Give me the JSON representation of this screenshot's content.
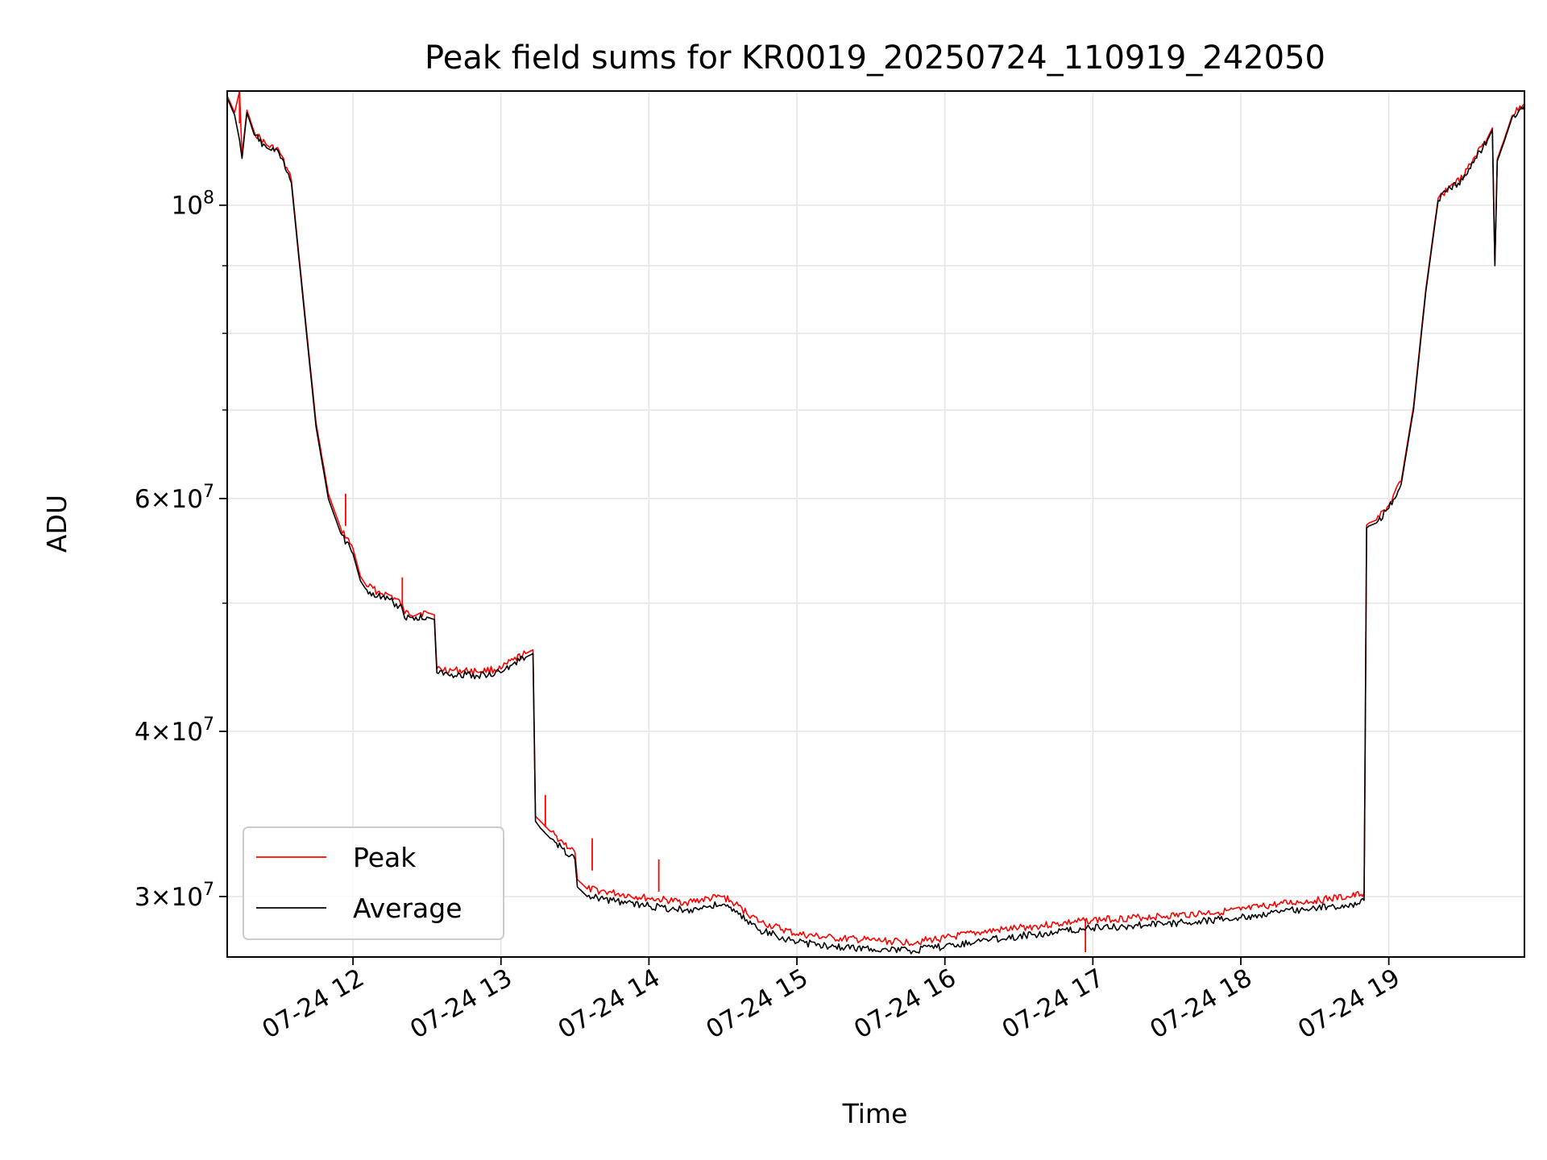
{
  "chart_data": {
    "type": "line",
    "title": "Peak field sums for KR0019_20250724_110919_242050",
    "xlabel": "Time",
    "ylabel": "ADU",
    "yscale": "log",
    "ylim": [
      27000000,
      122000000
    ],
    "xlim": [
      "2025-07-24 11:09",
      "2025-07-24 19:55"
    ],
    "grid": true,
    "legend_position": "lower-left",
    "x_ticks": [
      {
        "t": "2025-07-24 12:00",
        "label": "07-24 12"
      },
      {
        "t": "2025-07-24 13:00",
        "label": "07-24 13"
      },
      {
        "t": "2025-07-24 14:00",
        "label": "07-24 14"
      },
      {
        "t": "2025-07-24 15:00",
        "label": "07-24 15"
      },
      {
        "t": "2025-07-24 16:00",
        "label": "07-24 16"
      },
      {
        "t": "2025-07-24 17:00",
        "label": "07-24 17"
      },
      {
        "t": "2025-07-24 18:00",
        "label": "07-24 18"
      },
      {
        "t": "2025-07-24 19:00",
        "label": "07-24 19"
      }
    ],
    "y_major_ticks": [
      {
        "v": 30000000,
        "base": "3",
        "exp": "7"
      },
      {
        "v": 40000000,
        "base": "4",
        "exp": "7"
      },
      {
        "v": 60000000,
        "base": "6",
        "exp": "7"
      },
      {
        "v": 100000000,
        "base": "",
        "exp": "8"
      }
    ],
    "y_minor_ticks": [
      50000000,
      70000000,
      80000000,
      90000000
    ],
    "series": [
      {
        "name": "Average",
        "color": "#000000",
        "t": [
          "2025-07-24 11:09",
          "2025-07-24 11:12",
          "2025-07-24 11:14",
          "2025-07-24 11:15",
          "2025-07-24 11:17",
          "2025-07-24 11:20",
          "2025-07-24 11:25",
          "2025-07-24 11:30",
          "2025-07-24 11:35",
          "2025-07-24 11:40",
          "2025-07-24 11:45",
          "2025-07-24 11:50",
          "2025-07-24 11:55",
          "2025-07-24 12:00",
          "2025-07-24 12:03",
          "2025-07-24 12:05",
          "2025-07-24 12:10",
          "2025-07-24 12:15",
          "2025-07-24 12:20",
          "2025-07-24 12:21",
          "2025-07-24 12:30",
          "2025-07-24 12:33",
          "2025-07-24 12:34",
          "2025-07-24 12:40",
          "2025-07-24 12:50",
          "2025-07-24 13:00",
          "2025-07-24 13:05",
          "2025-07-24 13:10",
          "2025-07-24 13:13",
          "2025-07-24 13:14",
          "2025-07-24 13:16",
          "2025-07-24 13:20",
          "2025-07-24 13:25",
          "2025-07-24 13:30",
          "2025-07-24 13:31",
          "2025-07-24 13:35",
          "2025-07-24 13:45",
          "2025-07-24 14:00",
          "2025-07-24 14:15",
          "2025-07-24 14:30",
          "2025-07-24 14:35",
          "2025-07-24 14:45",
          "2025-07-24 15:00",
          "2025-07-24 15:15",
          "2025-07-24 15:30",
          "2025-07-24 15:45",
          "2025-07-24 16:00",
          "2025-07-24 16:15",
          "2025-07-24 16:30",
          "2025-07-24 16:45",
          "2025-07-24 17:00",
          "2025-07-24 17:30",
          "2025-07-24 18:00",
          "2025-07-24 18:15",
          "2025-07-24 18:30",
          "2025-07-24 18:45",
          "2025-07-24 18:50",
          "2025-07-24 18:51",
          "2025-07-24 18:52",
          "2025-07-24 18:55",
          "2025-07-24 19:00",
          "2025-07-24 19:05",
          "2025-07-24 19:10",
          "2025-07-24 19:15",
          "2025-07-24 19:20",
          "2025-07-24 19:25",
          "2025-07-24 19:30",
          "2025-07-24 19:35",
          "2025-07-24 19:40",
          "2025-07-24 19:42",
          "2025-07-24 19:43",
          "2025-07-24 19:44",
          "2025-07-24 19:47",
          "2025-07-24 19:50",
          "2025-07-24 19:55"
        ],
        "y": [
          120500000,
          117000000,
          112000000,
          108500000,
          117500000,
          113000000,
          110500000,
          109500000,
          104000000,
          84000000,
          68000000,
          60000000,
          56500000,
          54500000,
          52000000,
          51300000,
          50600000,
          50300000,
          49500000,
          48700000,
          48800000,
          48600000,
          44300000,
          44200000,
          44100000,
          44300000,
          45000000,
          45500000,
          45800000,
          34200000,
          33800000,
          33200000,
          32600000,
          32000000,
          30500000,
          30000000,
          29800000,
          29500000,
          29300000,
          29600000,
          29200000,
          28300000,
          27700000,
          27500000,
          27400000,
          27300000,
          27500000,
          27800000,
          28000000,
          28200000,
          28400000,
          28600000,
          28900000,
          29200000,
          29400000,
          29600000,
          29800000,
          57000000,
          57200000,
          57500000,
          59000000,
          61500000,
          70000000,
          86000000,
          100800000,
          103000000,
          104500000,
          108500000,
          112000000,
          114000000,
          90000000,
          108000000,
          112000000,
          116500000,
          119000000
        ]
      },
      {
        "name": "Peak",
        "color": "#ff0000",
        "t": [
          "2025-07-24 11:09",
          "2025-07-24 11:12",
          "2025-07-24 11:14",
          "2025-07-24 11:15",
          "2025-07-24 11:17",
          "2025-07-24 11:20",
          "2025-07-24 11:25",
          "2025-07-24 11:30",
          "2025-07-24 11:35",
          "2025-07-24 11:40",
          "2025-07-24 11:45",
          "2025-07-24 11:50",
          "2025-07-24 11:55",
          "2025-07-24 12:00",
          "2025-07-24 12:03",
          "2025-07-24 12:05",
          "2025-07-24 12:10",
          "2025-07-24 12:15",
          "2025-07-24 12:20",
          "2025-07-24 12:21",
          "2025-07-24 12:30",
          "2025-07-24 12:33",
          "2025-07-24 12:34",
          "2025-07-24 12:40",
          "2025-07-24 12:50",
          "2025-07-24 13:00",
          "2025-07-24 13:05",
          "2025-07-24 13:10",
          "2025-07-24 13:13",
          "2025-07-24 13:14",
          "2025-07-24 13:16",
          "2025-07-24 13:20",
          "2025-07-24 13:25",
          "2025-07-24 13:30",
          "2025-07-24 13:31",
          "2025-07-24 13:35",
          "2025-07-24 13:45",
          "2025-07-24 14:00",
          "2025-07-24 14:15",
          "2025-07-24 14:30",
          "2025-07-24 14:35",
          "2025-07-24 14:45",
          "2025-07-24 15:00",
          "2025-07-24 15:15",
          "2025-07-24 15:30",
          "2025-07-24 15:45",
          "2025-07-24 16:00",
          "2025-07-24 16:15",
          "2025-07-24 16:30",
          "2025-07-24 16:45",
          "2025-07-24 17:00",
          "2025-07-24 17:30",
          "2025-07-24 18:00",
          "2025-07-24 18:15",
          "2025-07-24 18:30",
          "2025-07-24 18:45",
          "2025-07-24 18:50",
          "2025-07-24 18:51",
          "2025-07-24 18:52",
          "2025-07-24 18:55",
          "2025-07-24 19:00",
          "2025-07-24 19:05",
          "2025-07-24 19:10",
          "2025-07-24 19:15",
          "2025-07-24 19:20",
          "2025-07-24 19:25",
          "2025-07-24 19:30",
          "2025-07-24 19:35",
          "2025-07-24 19:40",
          "2025-07-24 19:42",
          "2025-07-24 19:43",
          "2025-07-24 19:44",
          "2025-07-24 19:47",
          "2025-07-24 19:50",
          "2025-07-24 19:55"
        ],
        "y": [
          121000000,
          117500000,
          122000000,
          109000000,
          118000000,
          113500000,
          111000000,
          110000000,
          104500000,
          84500000,
          68500000,
          60500000,
          57000000,
          55000000,
          52400000,
          51700000,
          51000000,
          50700000,
          49900000,
          49100000,
          49200000,
          49000000,
          44600000,
          44500000,
          44400000,
          44600000,
          45300000,
          45800000,
          46100000,
          34500000,
          34200000,
          33600000,
          33000000,
          32400000,
          30900000,
          30400000,
          30200000,
          29900000,
          29700000,
          30000000,
          29600000,
          28700000,
          28100000,
          27900000,
          27800000,
          27700000,
          27900000,
          28200000,
          28400000,
          28600000,
          28800000,
          29000000,
          29300000,
          29600000,
          29800000,
          30000000,
          30200000,
          57300000,
          57500000,
          57800000,
          59300000,
          61800000,
          70400000,
          86400000,
          101200000,
          103400000,
          104900000,
          108900000,
          112400000,
          114400000,
          90400000,
          108400000,
          112400000,
          116900000,
          119400000
        ]
      }
    ],
    "peak_spikes": [
      {
        "t": "2025-07-24 11:14",
        "y": 122000000
      },
      {
        "t": "2025-07-24 11:57",
        "y": 60500000
      },
      {
        "t": "2025-07-24 12:20",
        "y": 52300000
      },
      {
        "t": "2025-07-24 13:18",
        "y": 35800000
      },
      {
        "t": "2025-07-24 13:37",
        "y": 33200000
      },
      {
        "t": "2025-07-24 14:04",
        "y": 32000000
      },
      {
        "t": "2025-07-24 16:57",
        "y": 28800000
      }
    ],
    "legend": [
      {
        "label": "Peak",
        "color": "#ff0000"
      },
      {
        "label": "Average",
        "color": "#000000"
      }
    ]
  }
}
